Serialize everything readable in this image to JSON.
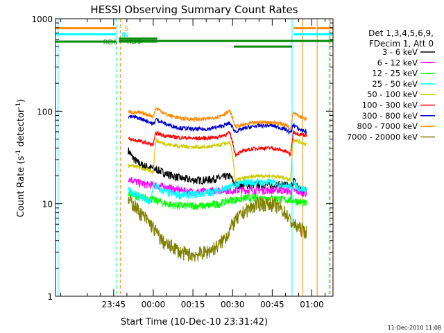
{
  "chart_data": {
    "type": "line",
    "title": "HESSI Observing Summary Count Rates",
    "xlabel": "Start Time (10-Dec-10 23:31:42)",
    "ylabel_main": "Count Rate (s",
    "ylabel_sup1": "-1",
    "ylabel_mid": " detector",
    "ylabel_sup2": "-1",
    "ylabel_end": ")",
    "yscale": "log",
    "ylim": [
      1,
      1000
    ],
    "xlim_min": [
      -37,
      68
    ],
    "x_ticks": [
      {
        "t": -15,
        "label": "23:45"
      },
      {
        "t": 0,
        "label": "00:00"
      },
      {
        "t": 15,
        "label": "00:15"
      },
      {
        "t": 30,
        "label": "00:30"
      },
      {
        "t": 45,
        "label": "00:45"
      },
      {
        "t": 60,
        "label": "01:00"
      }
    ],
    "y_ticks": [
      {
        "v": 1,
        "label": "1"
      },
      {
        "v": 10,
        "label": "10"
      },
      {
        "v": 100,
        "label": "100"
      },
      {
        "v": 1000,
        "label": "1000"
      }
    ],
    "legend_header": [
      "Det 1,3,4,5,6,9,",
      "FDecim 1, Att 0"
    ],
    "legend_position": "right",
    "timestamp": "11-Dec-2010 11:08",
    "series": [
      {
        "name": "3 - 6 keV",
        "color": "#000000",
        "x": [
          -9.5,
          -8,
          -6,
          -4,
          -2,
          0,
          2,
          5,
          10,
          15,
          20,
          25,
          29,
          31,
          35,
          40,
          45,
          50,
          52,
          53,
          55,
          56,
          58
        ],
        "y": [
          38,
          32,
          28,
          26,
          25,
          24,
          23,
          21,
          19,
          18,
          18,
          19,
          20,
          16,
          16,
          16,
          16,
          16,
          15,
          18,
          15,
          14,
          14
        ]
      },
      {
        "name": "6 - 12 keV",
        "color": "#ff00ff",
        "x": [
          -9.5,
          -6,
          -2,
          0,
          5,
          10,
          15,
          20,
          25,
          29,
          31,
          35,
          40,
          45,
          50,
          52,
          53,
          55,
          58
        ],
        "y": [
          19,
          17,
          16,
          16,
          15,
          14,
          13.5,
          13.5,
          14,
          14,
          14,
          14,
          14,
          14,
          14,
          13.5,
          14,
          13.5,
          13
        ]
      },
      {
        "name": "12 - 25 keV",
        "color": "#00ff00",
        "x": [
          -9.5,
          -6,
          -2,
          0,
          5,
          10,
          15,
          20,
          25,
          29,
          31,
          35,
          40,
          45,
          50,
          52,
          53,
          55,
          58
        ],
        "y": [
          13,
          12,
          11.5,
          11,
          10,
          9.5,
          9.5,
          9.5,
          10,
          11,
          11,
          11.5,
          11.5,
          11.5,
          11,
          11,
          11,
          10.5,
          10
        ]
      },
      {
        "name": "25 - 50 keV",
        "color": "#00ffff",
        "x": [
          -9.5,
          -7,
          -5,
          -3,
          -1,
          0,
          3,
          6,
          10,
          15,
          20,
          25,
          29,
          31,
          35,
          40,
          45,
          50,
          52,
          53,
          55,
          58
        ],
        "y": [
          14,
          13,
          12,
          11,
          10,
          16,
          14,
          13,
          12.5,
          12.5,
          13,
          14,
          15,
          16,
          17,
          17,
          17,
          16,
          15,
          16,
          15,
          14
        ]
      },
      {
        "name": "50 - 100 keV",
        "color": "#cccc00",
        "x": [
          -9.5,
          -6,
          -2,
          0,
          1,
          5,
          10,
          15,
          20,
          25,
          29,
          31,
          35,
          40,
          45,
          50,
          52,
          53,
          55,
          58
        ],
        "y": [
          26,
          25,
          23,
          22,
          48,
          44,
          42,
          41,
          41,
          43,
          46,
          18,
          19,
          20,
          20,
          19,
          18,
          50,
          47,
          44
        ]
      },
      {
        "name": "100 - 300 keV",
        "color": "#ff0000",
        "x": [
          -9.5,
          -6,
          -2,
          0,
          1,
          5,
          10,
          15,
          20,
          25,
          29,
          31,
          35,
          40,
          45,
          50,
          52,
          53,
          55,
          58
        ],
        "y": [
          50,
          48,
          45,
          43,
          58,
          54,
          52,
          51,
          51,
          53,
          58,
          34,
          38,
          40,
          40,
          37,
          34,
          60,
          57,
          55
        ]
      },
      {
        "name": "300 - 800 keV",
        "color": "#0000cc",
        "x": [
          -9.5,
          -6,
          -2,
          0,
          1,
          5,
          10,
          15,
          20,
          25,
          29,
          31,
          35,
          40,
          45,
          50,
          52,
          53,
          55,
          58
        ],
        "y": [
          88,
          85,
          78,
          72,
          82,
          72,
          66,
          64,
          64,
          68,
          74,
          60,
          66,
          70,
          70,
          64,
          58,
          72,
          64,
          60
        ]
      },
      {
        "name": "800 - 7000 keV",
        "color": "#ff8800",
        "x": [
          -9.5,
          -6,
          -2,
          0,
          1,
          5,
          10,
          15,
          20,
          25,
          29,
          31,
          35,
          40,
          45,
          50,
          52,
          53,
          55,
          58
        ],
        "y": [
          98,
          97,
          92,
          88,
          108,
          92,
          84,
          82,
          82,
          88,
          100,
          68,
          72,
          76,
          76,
          72,
          64,
          100,
          90,
          82
        ]
      },
      {
        "name": "7000 - 20000 keV",
        "color": "#808000",
        "x": [
          -9.5,
          -7,
          -5,
          -3,
          -1,
          0,
          2,
          4,
          6,
          8,
          10,
          15,
          20,
          22,
          25,
          28,
          30,
          32,
          35,
          40,
          45,
          48,
          50,
          52,
          53,
          55,
          58
        ],
        "y": [
          11,
          9.5,
          8,
          7,
          6,
          5.5,
          4.5,
          3.8,
          3.5,
          3.4,
          3,
          2.8,
          3,
          3.2,
          3.6,
          4.6,
          6,
          7,
          8.5,
          10,
          10,
          9,
          8,
          6.5,
          6,
          5.5,
          5
        ]
      }
    ],
    "state_bars": [
      {
        "label": "S",
        "color": "#ff8800",
        "level": 790,
        "label_time": -11,
        "segments": [
          [
            -37,
            -14
          ],
          [
            53,
            61.5
          ],
          [
            62,
            68
          ]
        ]
      },
      {
        "label": "IN",
        "color": "#00ffff",
        "level": 680,
        "label_time": -12,
        "segments": [
          [
            -37,
            -14
          ],
          [
            53,
            68
          ]
        ]
      },
      {
        "label": "RD0",
        "color": "#008800",
        "level": 575,
        "label_time": -10,
        "segments": [
          [
            -13,
            1.5
          ],
          [
            1.5,
            30.5
          ],
          [
            30.5,
            52.5
          ],
          [
            52.5,
            68
          ]
        ]
      },
      {
        "label": "RD6",
        "color": "#008800",
        "level": 565,
        "label_time": -19,
        "segments": [
          [
            -37,
            -14
          ],
          [
            -13,
            1.5
          ]
        ]
      }
    ],
    "state_levels_hi": [
      [
        -13,
        1.5,
        610
      ],
      [
        1.5,
        30.5,
        575
      ],
      [
        30.5,
        52.5,
        500
      ],
      [
        52.5,
        68,
        575
      ]
    ],
    "vlines": [
      {
        "t": -36,
        "color": "#00ffff",
        "style": "solid"
      },
      {
        "t": -14,
        "color": "#00ffff",
        "style": "dashed"
      },
      {
        "t": -12.5,
        "color": "#ff8800",
        "style": "dashed"
      },
      {
        "t": 52.5,
        "color": "#00ffff",
        "style": "solid"
      },
      {
        "t": 56.5,
        "color": "#ff8800",
        "style": "solid"
      },
      {
        "t": 62,
        "color": "#ff8800",
        "style": "solid"
      },
      {
        "t": 66.5,
        "color": "#00ffff",
        "style": "dashed"
      },
      {
        "t": 66.9,
        "color": "#ff8800",
        "style": "dashed"
      }
    ]
  }
}
